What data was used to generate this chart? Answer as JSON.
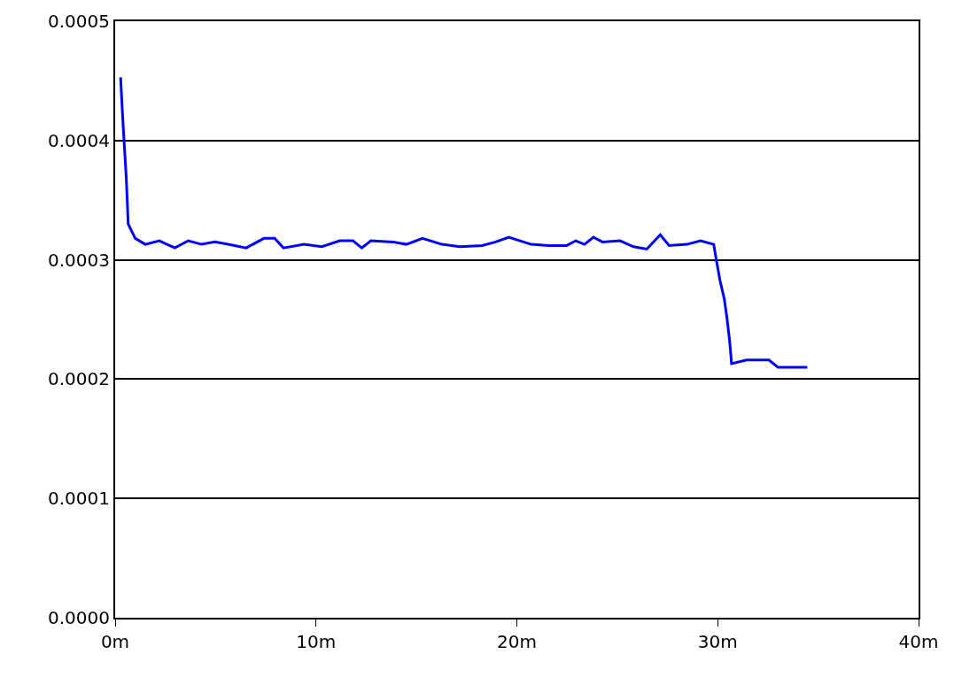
{
  "chart_data": {
    "type": "line",
    "x": [
      0.27,
      0.4,
      0.55,
      0.65,
      1.0,
      1.5,
      2.2,
      2.97,
      3.64,
      4.3,
      4.97,
      5.63,
      6.52,
      7.41,
      7.94,
      8.38,
      9.4,
      10.29,
      11.18,
      11.84,
      12.28,
      12.73,
      13.84,
      14.5,
      15.3,
      16.27,
      17.16,
      18.27,
      18.94,
      19.6,
      20.71,
      21.6,
      22.48,
      22.93,
      23.37,
      23.81,
      24.26,
      25.14,
      25.81,
      26.47,
      27.14,
      27.58,
      28.47,
      29.14,
      29.8,
      29.93,
      30.11,
      30.33,
      30.47,
      30.6,
      30.69,
      31.44,
      32.55,
      33.0,
      34.46
    ],
    "series": [
      {
        "color": "#0000ff",
        "values": [
          0.000453,
          0.000412,
          0.00037,
          0.00033,
          0.000318,
          0.000313,
          0.000316,
          0.00031,
          0.000316,
          0.000313,
          0.000315,
          0.000313,
          0.00031,
          0.000318,
          0.000318,
          0.00031,
          0.000313,
          0.000311,
          0.000316,
          0.000316,
          0.00031,
          0.000316,
          0.000315,
          0.000313,
          0.000318,
          0.000313,
          0.000311,
          0.000312,
          0.000315,
          0.000319,
          0.000313,
          0.000312,
          0.000312,
          0.000316,
          0.000313,
          0.000319,
          0.000315,
          0.000316,
          0.000311,
          0.000309,
          0.000321,
          0.000312,
          0.000313,
          0.000316,
          0.000313,
          0.0003,
          0.000283,
          0.000267,
          0.00025,
          0.000231,
          0.000213,
          0.000216,
          0.000216,
          0.00021,
          0.00021
        ]
      }
    ],
    "xlim": [
      0,
      40
    ],
    "xticks": [
      {
        "value": 0,
        "label": "0m"
      },
      {
        "value": 10,
        "label": "10m"
      },
      {
        "value": 20,
        "label": "20m"
      },
      {
        "value": 30,
        "label": "30m"
      },
      {
        "value": 40,
        "label": "40m"
      }
    ],
    "ylim": [
      0,
      0.0005
    ],
    "yticks": [
      {
        "value": 0,
        "label": "0.0000"
      },
      {
        "value": 0.0001,
        "label": "0.0001"
      },
      {
        "value": 0.0002,
        "label": "0.0002"
      },
      {
        "value": 0.0003,
        "label": "0.0003"
      },
      {
        "value": 0.0004,
        "label": "0.0004"
      },
      {
        "value": 0.0005,
        "label": "0.0005"
      }
    ],
    "grid": "y",
    "legend": false,
    "marker": "none",
    "line_style": "solid"
  }
}
